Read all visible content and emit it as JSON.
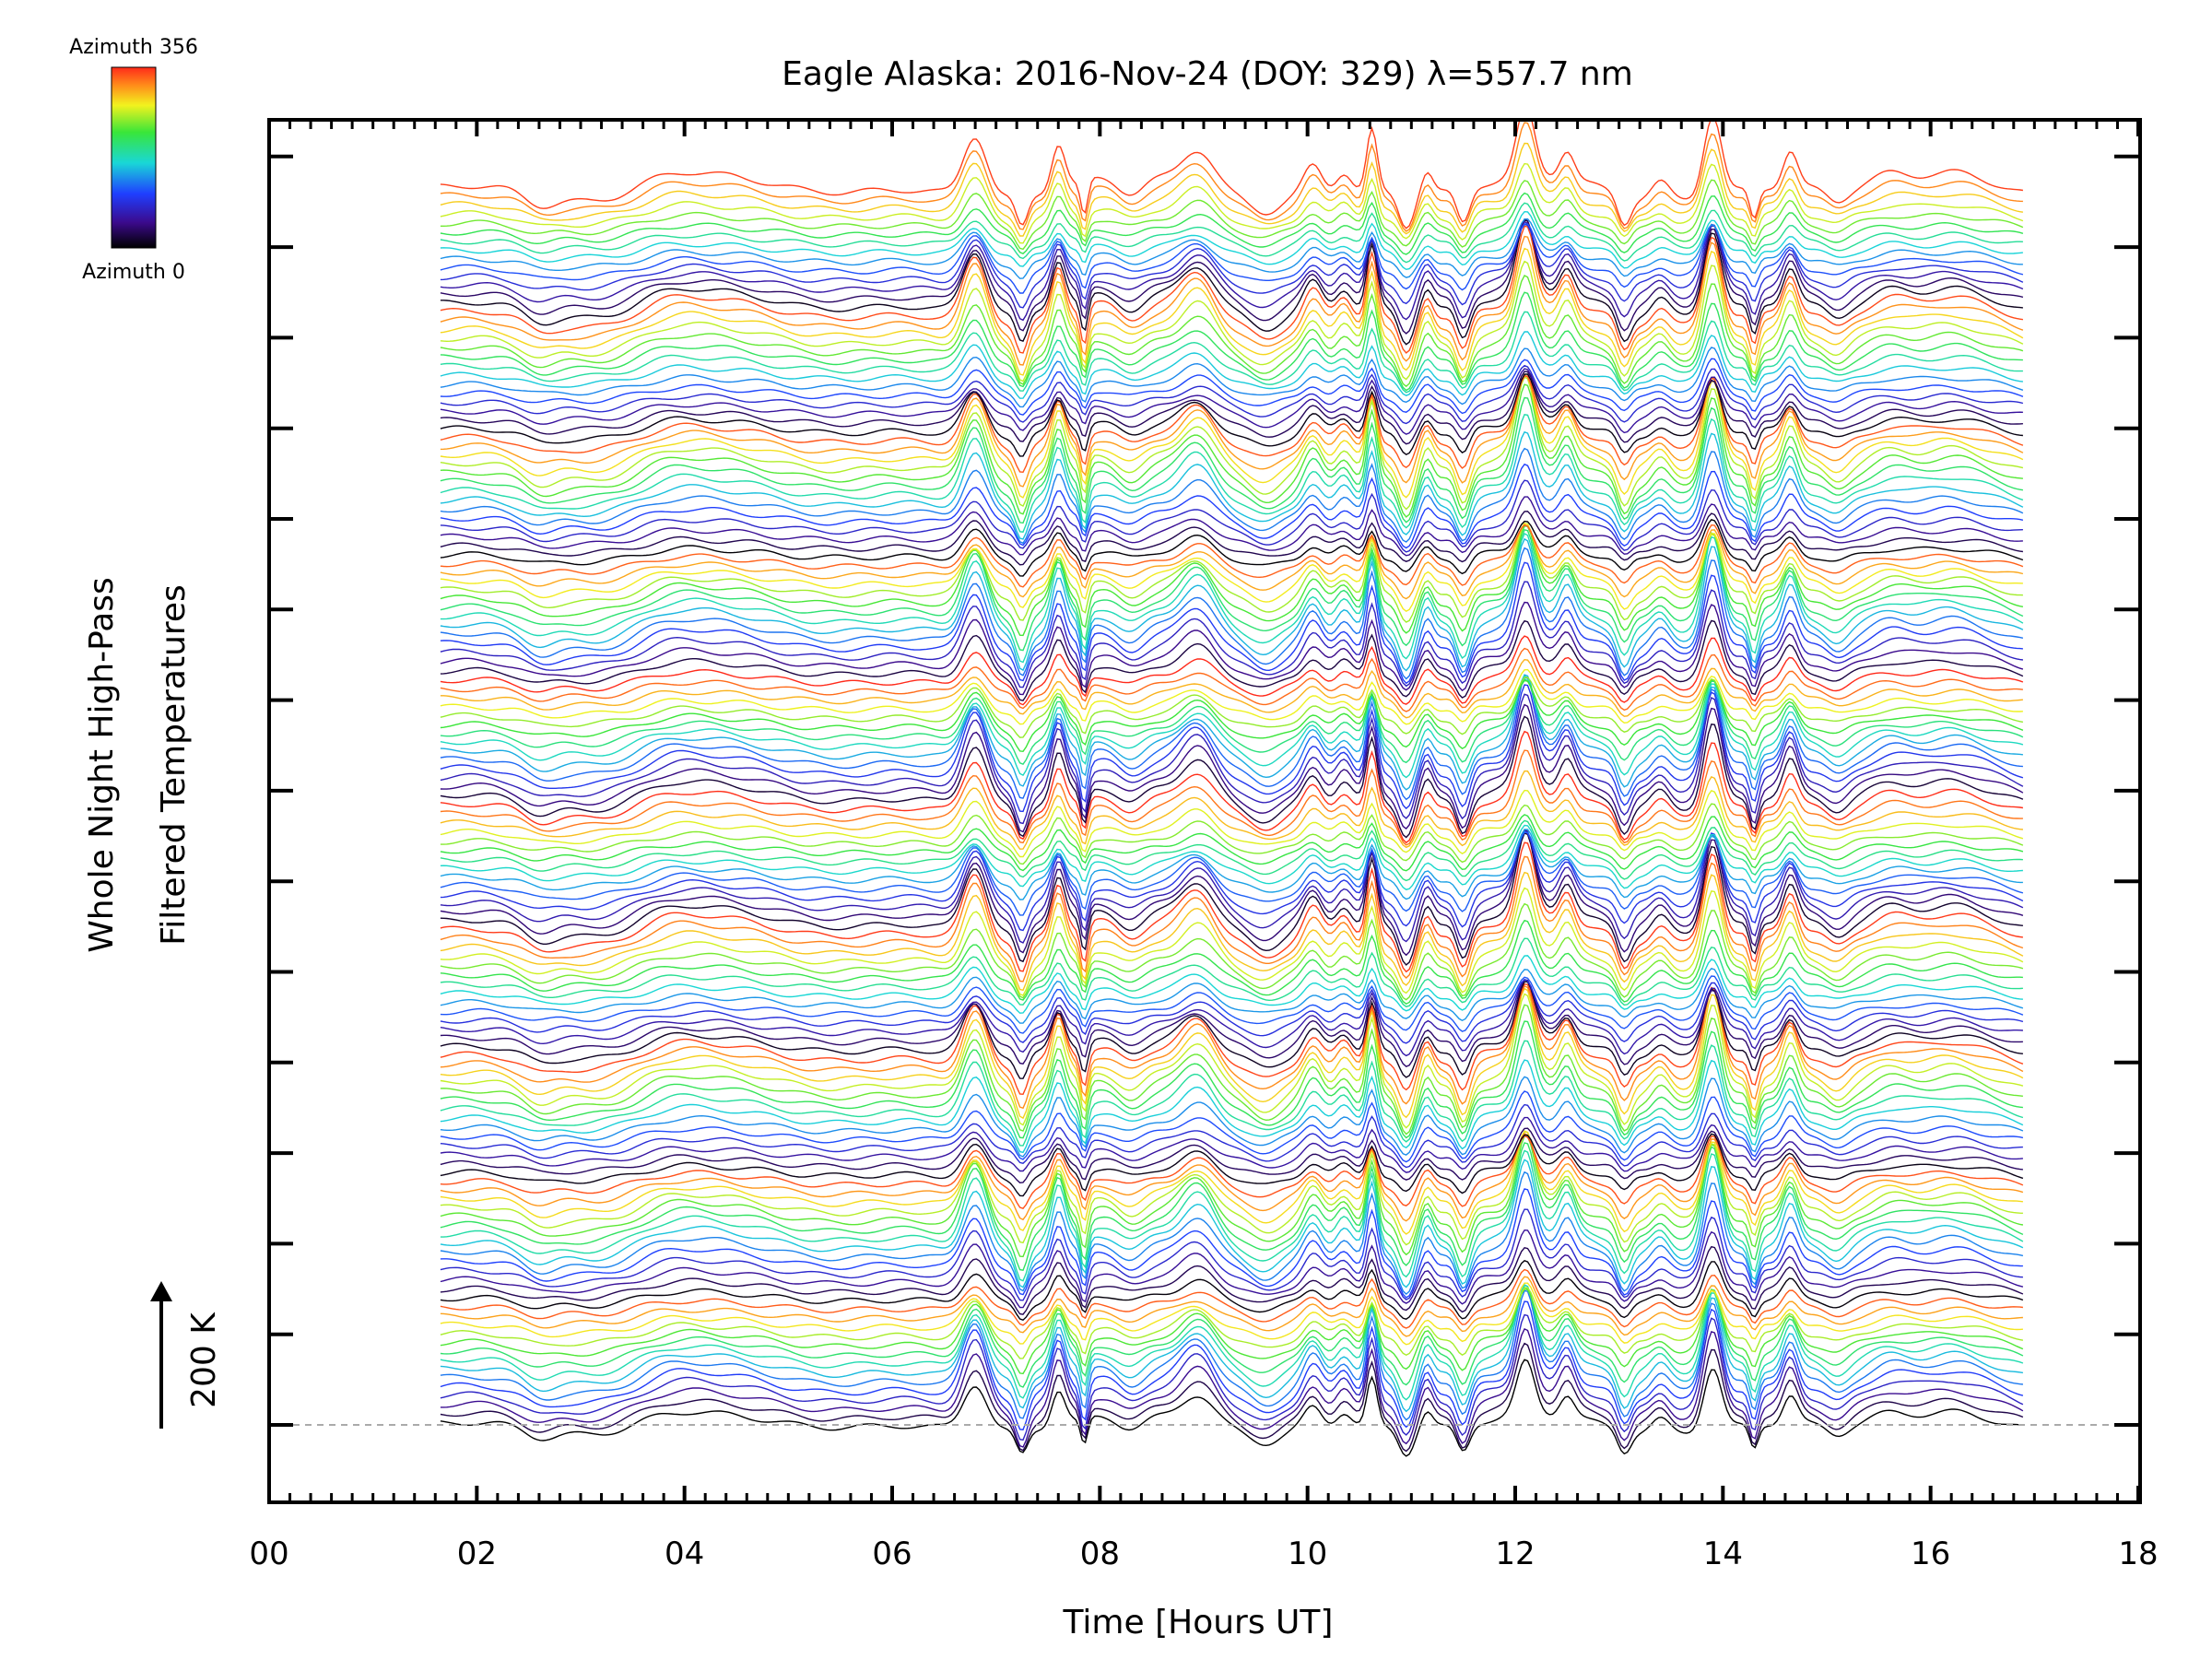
{
  "chart_data": {
    "type": "line",
    "title": "Eagle Alaska: 2016-Nov-24 (DOY: 329) λ=557.7 nm",
    "xlabel": "Time [Hours UT]",
    "ylabel_line1": "Whole Night High-Pass",
    "ylabel_line2": "Filtered Temperatures",
    "xlim": [
      0,
      18
    ],
    "x_tick_labels": [
      "00",
      "02",
      "04",
      "06",
      "08",
      "10",
      "12",
      "14",
      "16",
      "18"
    ],
    "x_tick_values": [
      0,
      2,
      4,
      6,
      8,
      10,
      12,
      14,
      16,
      18
    ],
    "x_data_range": [
      1.65,
      16.9
    ],
    "scale_bar_label": "200 K",
    "series_count": 139,
    "azimuth_range": [
      0,
      356
    ],
    "colorbar": {
      "top_label": "Azimuth 356",
      "bottom_label": "Azimuth 0",
      "colormap": "rainbow: black-purple at azimuth 0 through blue, cyan, green, yellow to red at azimuth 356"
    },
    "baseline": {
      "style": "dashed",
      "color": "#aaaaaa"
    },
    "grid": false,
    "legend": "colorbar-top-left",
    "colors": {
      "low": "#000000",
      "purple": "#3b0a8c",
      "blue": "#1f3fff",
      "cyan": "#19d7d7",
      "green": "#39e639",
      "yellow": "#f2f21e",
      "orange": "#ff8c1a",
      "red": "#ff2a1a"
    }
  }
}
